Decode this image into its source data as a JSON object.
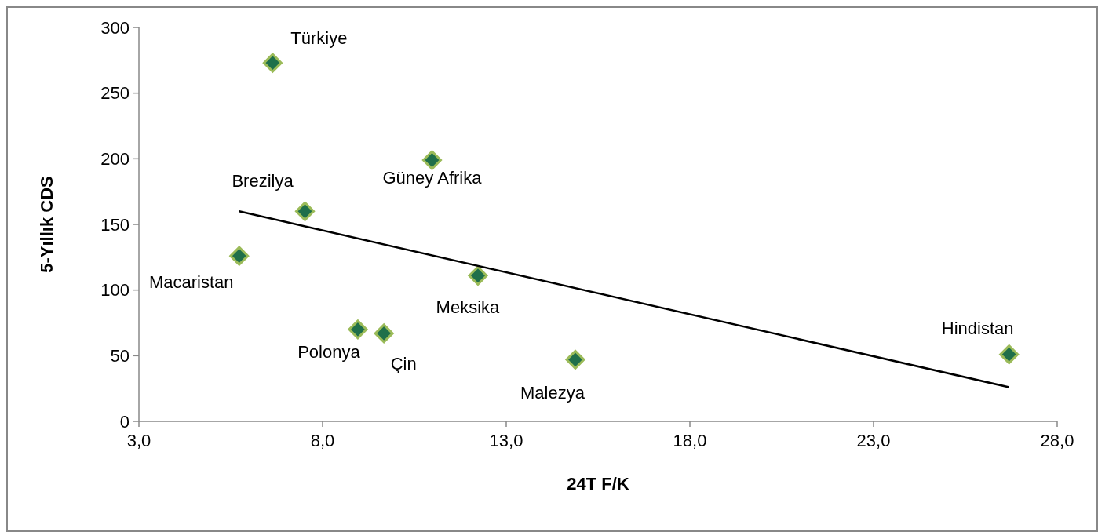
{
  "chart_data": {
    "type": "scatter",
    "xlabel": "24T F/K",
    "ylabel": "5-Yıllık CDS",
    "xlim": [
      3,
      28
    ],
    "xticks": [
      {
        "value": 3,
        "label": "3,0"
      },
      {
        "value": 8,
        "label": "8,0"
      },
      {
        "value": 13,
        "label": "13,0"
      },
      {
        "value": 18,
        "label": "18,0"
      },
      {
        "value": 23,
        "label": "23,0"
      },
      {
        "value": 28,
        "label": "28,0"
      }
    ],
    "ylim": [
      0,
      300
    ],
    "yticks": [
      0,
      50,
      100,
      150,
      200,
      250,
      300
    ],
    "grid": false,
    "series": [
      {
        "marker": "diamond",
        "color": "#1f6f4a",
        "x": [
          6.64,
          7.52,
          5.73,
          10.98,
          12.23,
          8.96,
          9.67,
          14.88,
          26.69
        ],
        "values": [
          273,
          160,
          126,
          199,
          111,
          70,
          67,
          47,
          51
        ]
      },
      {
        "type": "line",
        "marker": "none",
        "color": "#000000",
        "x": [
          5.73,
          26.69
        ],
        "values": [
          160,
          26
        ]
      }
    ],
    "annotations": [
      {
        "text": "Türkiye",
        "x": 6.64,
        "y": 273
      },
      {
        "text": "Brezilya",
        "x": 7.52,
        "y": 160
      },
      {
        "text": "Macaristan",
        "x": 5.73,
        "y": 126
      },
      {
        "text": "Güney Afrika",
        "x": 10.98,
        "y": 199
      },
      {
        "text": "Meksika",
        "x": 12.23,
        "y": 111
      },
      {
        "text": "Polonya",
        "x": 8.96,
        "y": 70
      },
      {
        "text": "Çin",
        "x": 9.67,
        "y": 67
      },
      {
        "text": "Malezya",
        "x": 14.88,
        "y": 47
      },
      {
        "text": "Hindistan",
        "x": 26.69,
        "y": 51
      }
    ]
  }
}
